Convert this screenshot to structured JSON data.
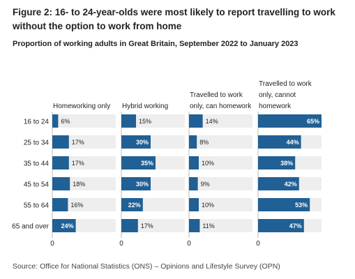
{
  "figure": {
    "title": "Figure 2: 16- to 24-year-olds were most likely to report travelling to work without the option to work from home",
    "subtitle": "Proportion of working adults in Great Britain, September 2022 to January 2023",
    "source": "Source: Office for National Statistics (ONS) – Opinions and Lifestyle Survey (OPN)"
  },
  "colors": {
    "bar": "#206095",
    "track": "#eeeeee",
    "axis": "#bbbbbb",
    "text": "#222222"
  },
  "chart_data": {
    "type": "bar",
    "orientation": "horizontal",
    "layout": "small-multiples",
    "categories": [
      "16 to 24",
      "25 to 34",
      "35 to 44",
      "45 to 54",
      "55 to 64",
      "65 and over"
    ],
    "xlim": [
      0,
      65
    ],
    "x_tick_labels": [
      "0",
      "0",
      "0",
      "0"
    ],
    "value_suffix": "%",
    "panels": [
      {
        "name": "Homeworking only",
        "title_lines": [
          "Homeworking only"
        ],
        "values": [
          6,
          17,
          17,
          18,
          16,
          24
        ]
      },
      {
        "name": "Hybrid working",
        "title_lines": [
          "Hybrid working"
        ],
        "values": [
          15,
          30,
          35,
          30,
          22,
          17
        ]
      },
      {
        "name": "Travelled to work only, can homework",
        "title_lines": [
          "Travelled to work",
          "only, can homework"
        ],
        "values": [
          14,
          8,
          10,
          9,
          10,
          11
        ]
      },
      {
        "name": "Travelled to work only, cannot homework",
        "title_lines": [
          "Travelled to work",
          "only, cannot",
          "homework"
        ],
        "values": [
          65,
          44,
          38,
          42,
          53,
          47
        ]
      }
    ]
  }
}
